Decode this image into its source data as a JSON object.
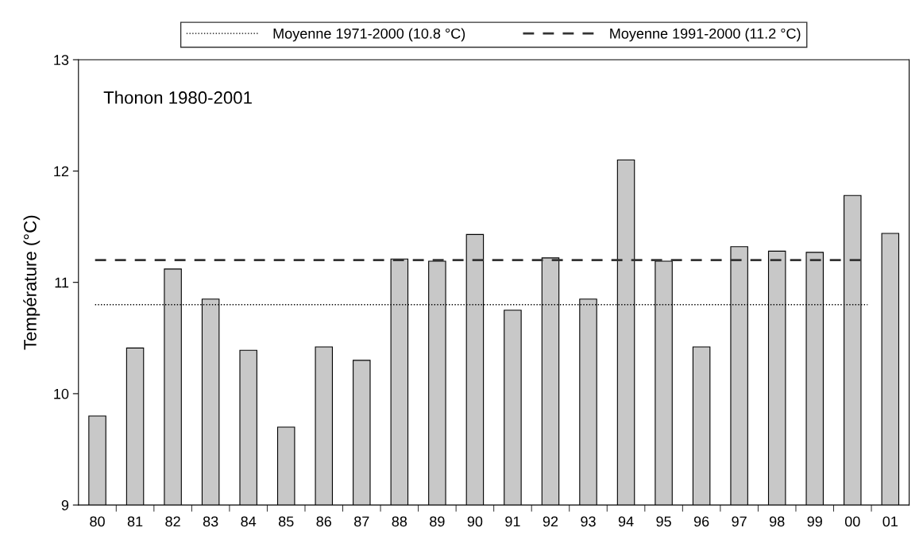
{
  "chart_data": {
    "type": "bar",
    "annotations": [
      "Thonon 1980-2001"
    ],
    "ylabel": "Température (°C)",
    "categories": [
      "80",
      "81",
      "82",
      "83",
      "84",
      "85",
      "86",
      "87",
      "88",
      "89",
      "90",
      "91",
      "92",
      "93",
      "94",
      "95",
      "96",
      "97",
      "98",
      "99",
      "00",
      "01"
    ],
    "values": [
      9.8,
      10.41,
      11.12,
      10.85,
      10.39,
      9.7,
      10.42,
      10.3,
      11.21,
      11.19,
      11.43,
      10.75,
      11.22,
      10.85,
      12.1,
      11.19,
      10.42,
      11.32,
      11.28,
      11.27,
      11.78,
      11.44
    ],
    "color": "#c8c8c8",
    "ylim": [
      9,
      13
    ],
    "yticks": [
      9,
      10,
      11,
      12,
      13
    ],
    "ref_lines": [
      {
        "axis": "y",
        "value": 10.8,
        "label": "Moyenne 1971-2000 (10.8 °C)",
        "color": "#000000",
        "line_style": "dotted"
      },
      {
        "axis": "y",
        "value": 11.2,
        "label": "Moyenne 1991-2000 (11.2 °C)",
        "color": "#333333",
        "line_style": "dashed"
      }
    ],
    "grid": false,
    "legend": "top"
  }
}
